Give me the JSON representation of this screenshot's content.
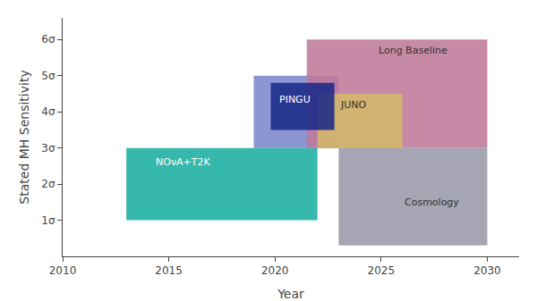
{
  "chart_data": {
    "type": "range",
    "xlabel": "Year",
    "ylabel": "Stated MH Sensitivity",
    "xlim": [
      2010,
      2031.5
    ],
    "ylim": [
      0,
      6.6
    ],
    "xticks": [
      2010,
      2015,
      2020,
      2025,
      2030
    ],
    "yticks": [
      {
        "value": 1,
        "label": "1σ"
      },
      {
        "value": 2,
        "label": "2σ"
      },
      {
        "value": 3,
        "label": "3σ"
      },
      {
        "value": 4,
        "label": "4σ"
      },
      {
        "value": 5,
        "label": "5σ"
      },
      {
        "value": 6,
        "label": "6σ"
      }
    ],
    "grid": false,
    "series": [
      {
        "name": "NOνA+T2K",
        "color": "#1aafa0",
        "x0": 2013.0,
        "x1": 2022.0,
        "y0": 1.0,
        "y1": 3.0,
        "label_x": 2014.3,
        "label_y": 2.6
      },
      {
        "color": "#7b88cc",
        "x0": 2019.0,
        "x1": 2023.0,
        "y0": 3.0,
        "y1": 5.0
      },
      {
        "name": "Long Baseline",
        "color": "#bf7a9a",
        "x0": 2021.5,
        "x1": 2030.0,
        "y0": 3.0,
        "y1": 6.0,
        "label_x": 2024.8,
        "label_y": 5.7
      },
      {
        "name": "Cosmology",
        "color": "#9898a8",
        "x0": 2023.0,
        "x1": 2030.0,
        "y0": 0.3,
        "y1": 3.0,
        "label_x": 2026.0,
        "label_y": 1.5
      },
      {
        "name": "JUNO",
        "color": "#d4b86a",
        "x0": 2022.0,
        "x1": 2026.0,
        "y0": 3.0,
        "y1": 4.5,
        "label_x": 2023.0,
        "label_y": 4.2
      },
      {
        "name": "PINGU",
        "color": "#1a2a88",
        "x0": 2019.8,
        "x1": 2022.8,
        "y0": 3.5,
        "y1": 4.8,
        "label_x": 2020.1,
        "label_y": 4.35
      }
    ]
  }
}
